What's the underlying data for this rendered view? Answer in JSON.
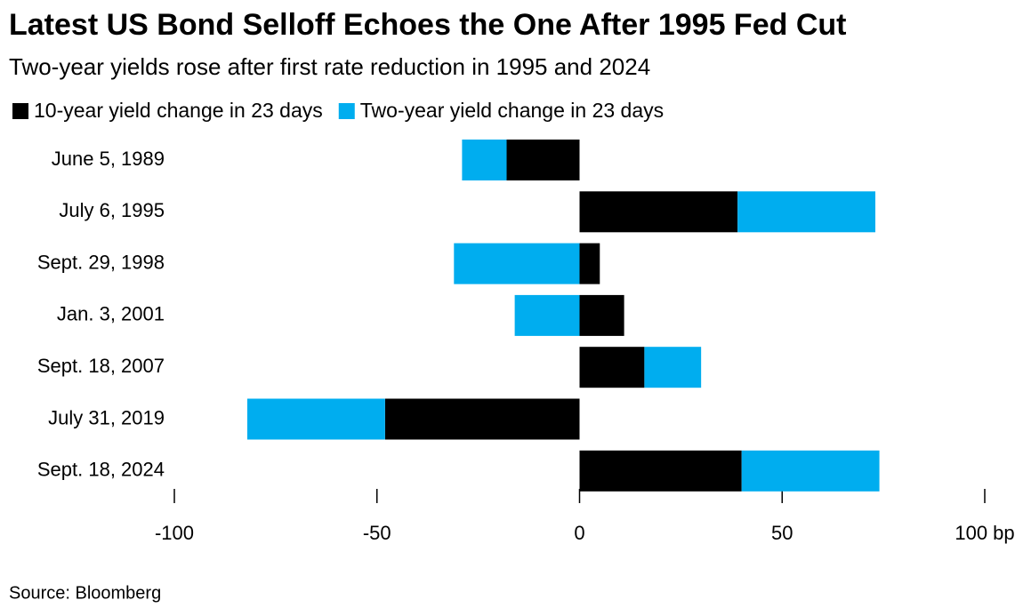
{
  "chart_data": {
    "type": "stacked-hbar",
    "title": "Latest US Bond Selloff Echoes the One After 1995 Fed Cut",
    "subtitle": "Two-year yields rose after first rate reduction in 1995 and 2024",
    "source": "Source: Bloomberg",
    "categories": [
      "June 5, 1989",
      "July 6, 1995",
      "Sept. 29, 1998",
      "Jan. 3, 2001",
      "Sept. 18, 2007",
      "July 31, 2019",
      "Sept. 18, 2024"
    ],
    "series": [
      {
        "name": "10-year yield change in 23 days",
        "color": "#000000",
        "values": [
          -18,
          39,
          5,
          11,
          16,
          -48,
          40
        ]
      },
      {
        "name": "Two-year yield change in 23 days",
        "color": "#00adef",
        "values": [
          -11,
          34,
          -31,
          -16,
          14,
          -34,
          34
        ]
      }
    ],
    "xlim": [
      -100,
      100
    ],
    "xticks": [
      -100,
      -50,
      0,
      50,
      {
        "value": 100,
        "label": "100 bp"
      }
    ]
  }
}
